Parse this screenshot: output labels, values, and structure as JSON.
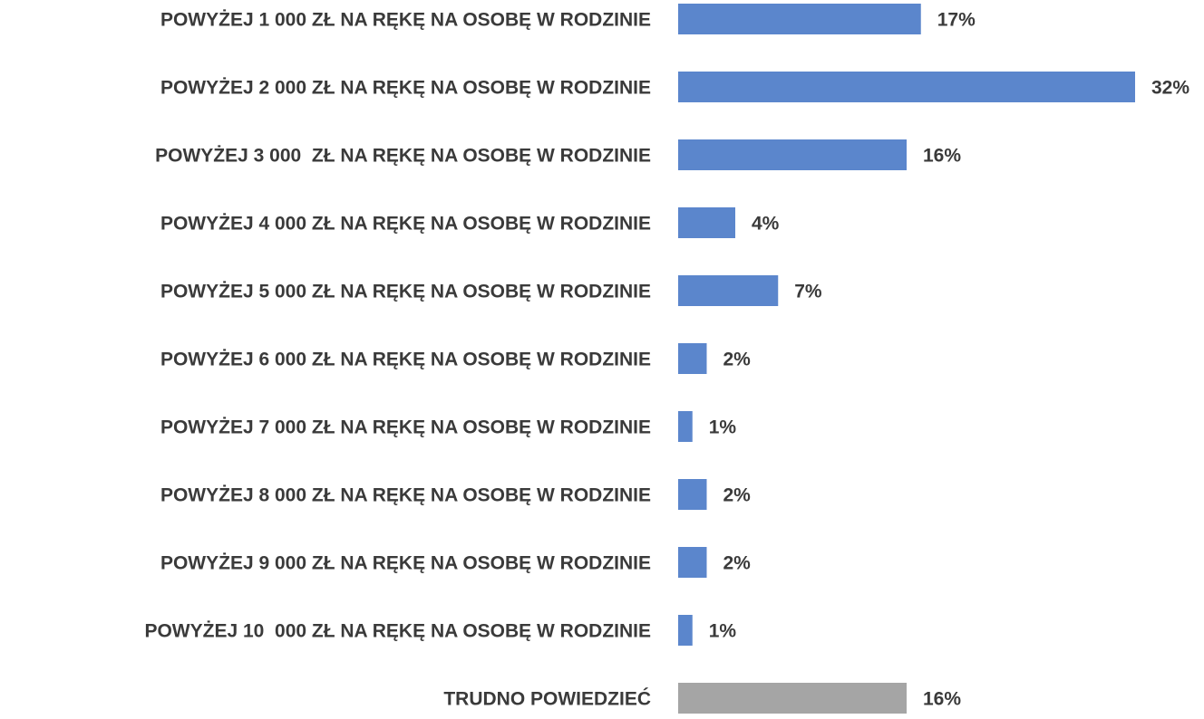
{
  "chart_data": {
    "type": "barh",
    "categories": [
      "POWYŻEJ 1 000 ZŁ NA RĘKĘ NA OSOBĘ W RODZINIE",
      "POWYŻEJ 2 000 ZŁ NA RĘKĘ NA OSOBĘ W RODZINIE",
      "POWYŻEJ 3 000  ZŁ NA RĘKĘ NA OSOBĘ W RODZINIE",
      "POWYŻEJ 4 000 ZŁ NA RĘKĘ NA OSOBĘ W RODZINIE",
      "POWYŻEJ 5 000 ZŁ NA RĘKĘ NA OSOBĘ W RODZINIE",
      "POWYŻEJ 6 000 ZŁ NA RĘKĘ NA OSOBĘ W RODZINIE",
      "POWYŻEJ 7 000 ZŁ NA RĘKĘ NA OSOBĘ W RODZINIE",
      "POWYŻEJ 8 000 ZŁ NA RĘKĘ NA OSOBĘ W RODZINIE",
      "POWYŻEJ 9 000 ZŁ NA RĘKĘ NA OSOBĘ W RODZINIE",
      "POWYŻEJ 10  000 ZŁ NA RĘKĘ NA OSOBĘ W RODZINIE",
      "TRUDNO POWIEDZIEĆ"
    ],
    "values": [
      17,
      32,
      16,
      4,
      7,
      2,
      1,
      2,
      2,
      1,
      16
    ],
    "value_labels": [
      "17%",
      "32%",
      "16%",
      "4%",
      "7%",
      "2%",
      "1%",
      "2%",
      "2%",
      "1%",
      "16%"
    ],
    "colors": [
      "#5b86cc",
      "#5b86cc",
      "#5b86cc",
      "#5b86cc",
      "#5b86cc",
      "#5b86cc",
      "#5b86cc",
      "#5b86cc",
      "#5b86cc",
      "#5b86cc",
      "#a5a5a5"
    ]
  }
}
